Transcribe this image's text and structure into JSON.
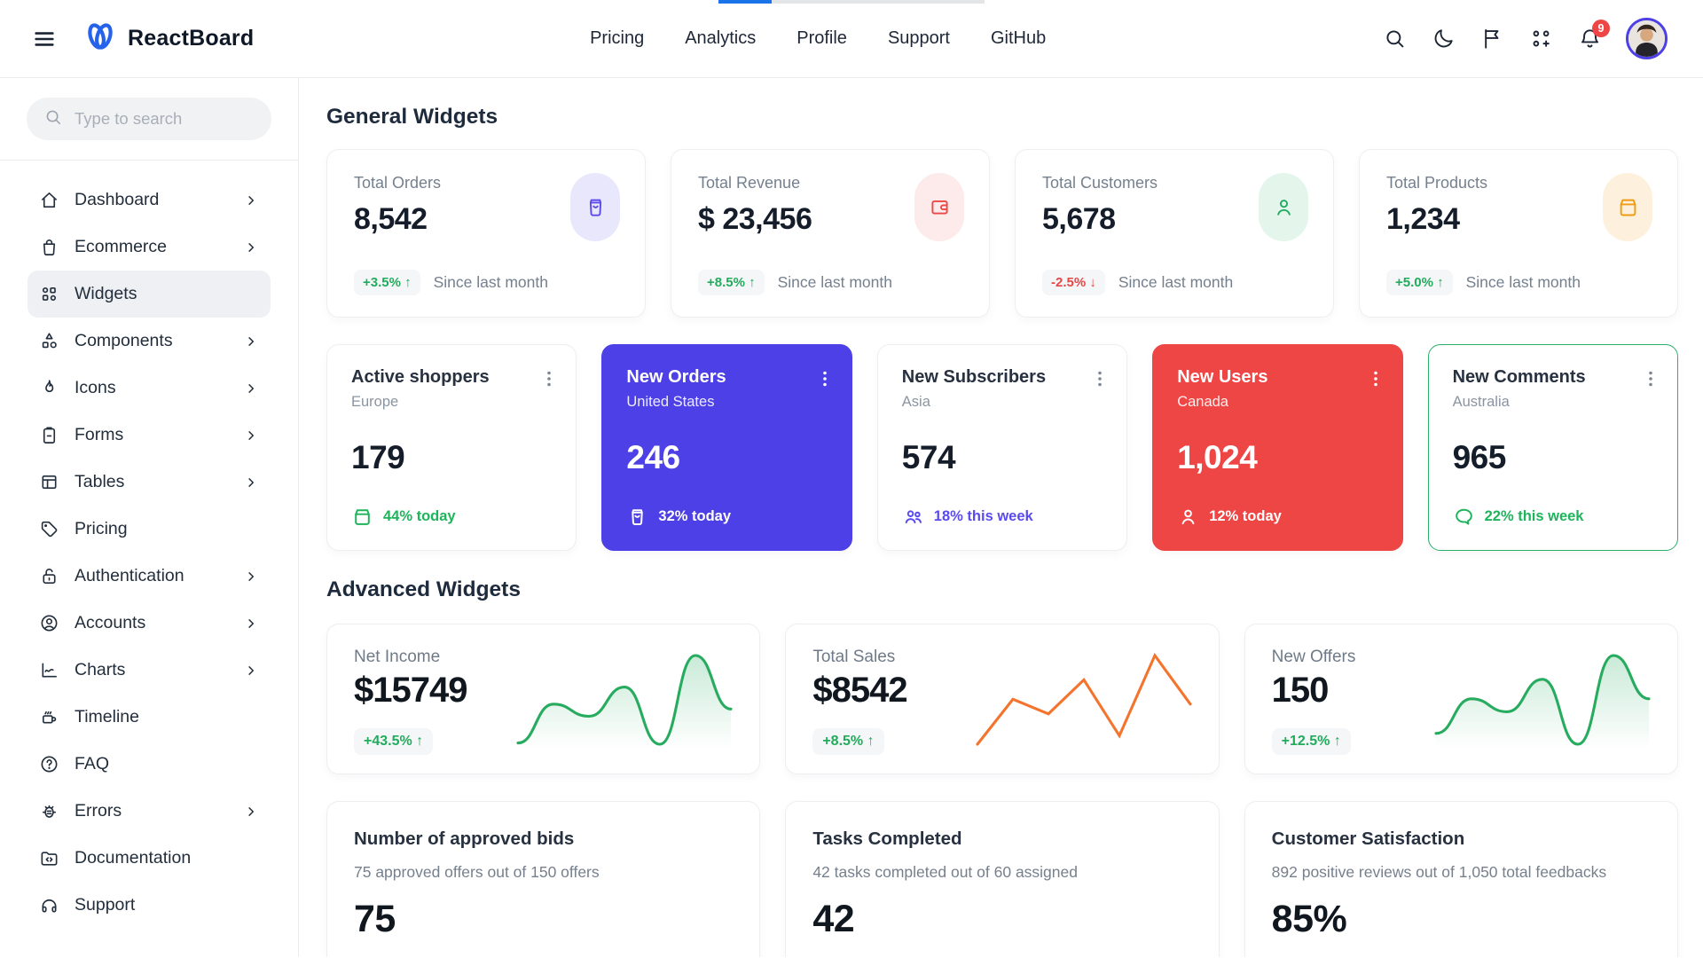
{
  "brand": {
    "name": "ReactBoard"
  },
  "topbar": {
    "nav_links": [
      "Pricing",
      "Analytics",
      "Profile",
      "Support",
      "GitHub"
    ],
    "notification_count": "9",
    "icons": [
      "search-icon",
      "moon-icon",
      "flag-icon",
      "apps-icon",
      "bell-icon",
      "user-avatar"
    ],
    "progress_percent": 20
  },
  "sidebar": {
    "search_placeholder": "Type to search",
    "items": [
      {
        "label": "Dashboard",
        "icon": "home-icon",
        "chevron": true,
        "active": false
      },
      {
        "label": "Ecommerce",
        "icon": "shopping-bag-icon",
        "chevron": true,
        "active": false
      },
      {
        "label": "Widgets",
        "icon": "widgets-icon",
        "chevron": false,
        "active": true
      },
      {
        "label": "Components",
        "icon": "shapes-icon",
        "chevron": true,
        "active": false
      },
      {
        "label": "Icons",
        "icon": "flame-icon",
        "chevron": true,
        "active": false
      },
      {
        "label": "Forms",
        "icon": "clipboard-icon",
        "chevron": true,
        "active": false
      },
      {
        "label": "Tables",
        "icon": "table-icon",
        "chevron": true,
        "active": false
      },
      {
        "label": "Pricing",
        "icon": "tag-icon",
        "chevron": false,
        "active": false
      },
      {
        "label": "Authentication",
        "icon": "lock-open-icon",
        "chevron": true,
        "active": false
      },
      {
        "label": "Accounts",
        "icon": "user-circle-icon",
        "chevron": true,
        "active": false
      },
      {
        "label": "Charts",
        "icon": "chart-line-icon",
        "chevron": true,
        "active": false
      },
      {
        "label": "Timeline",
        "icon": "coffee-icon",
        "chevron": false,
        "active": false
      },
      {
        "label": "FAQ",
        "icon": "help-circle-icon",
        "chevron": false,
        "active": false
      },
      {
        "label": "Errors",
        "icon": "bug-icon",
        "chevron": true,
        "active": false
      },
      {
        "label": "Documentation",
        "icon": "folder-code-icon",
        "chevron": false,
        "active": false
      },
      {
        "label": "Support",
        "icon": "headphones-icon",
        "chevron": false,
        "active": false
      }
    ]
  },
  "sections": {
    "general": "General Widgets",
    "advanced": "Advanced Widgets"
  },
  "stat_cards": [
    {
      "label": "Total Orders",
      "value": "8,542",
      "delta": "+3.5%",
      "arrow": "↑",
      "delta_color": "#21ac5c",
      "note": "Since last month",
      "icon": "order-bag-icon",
      "icon_color": "#5b4be8",
      "icon_bg": "#e9e7fb"
    },
    {
      "label": "Total Revenue",
      "value": "$ 23,456",
      "delta": "+8.5%",
      "arrow": "↑",
      "delta_color": "#21ac5c",
      "note": "Since last month",
      "icon": "wallet-icon",
      "icon_color": "#ec4747",
      "icon_bg": "#fdeaea"
    },
    {
      "label": "Total Customers",
      "value": "5,678",
      "delta": "-2.5%",
      "arrow": "↓",
      "delta_color": "#e64747",
      "note": "Since last month",
      "icon": "person-icon",
      "icon_color": "#22ab60",
      "icon_bg": "#e4f6ec"
    },
    {
      "label": "Total Products",
      "value": "1,234",
      "delta": "+5.0%",
      "arrow": "↑",
      "delta_color": "#21ac5c",
      "note": "Since last month",
      "icon": "package-icon",
      "icon_color": "#f09b11",
      "icon_bg": "#fdf1dd"
    }
  ],
  "mini_cards": [
    {
      "title": "Active shoppers",
      "region": "Europe",
      "value": "179",
      "stat": "44% today",
      "icon": "package-icon",
      "variant": "white",
      "accent": "#1db45c"
    },
    {
      "title": "New Orders",
      "region": "United States",
      "value": "246",
      "stat": "32% today",
      "icon": "order-bag-icon",
      "variant": "indigo",
      "accent": "#ffffff"
    },
    {
      "title": "New Subscribers",
      "region": "Asia",
      "value": "574",
      "stat": "18% this week",
      "icon": "users-icon",
      "variant": "white",
      "accent": "#5a4bf0"
    },
    {
      "title": "New Users",
      "region": "Canada",
      "value": "1,024",
      "stat": "12% today",
      "icon": "person-icon",
      "variant": "red",
      "accent": "#ffffff"
    },
    {
      "title": "New Comments",
      "region": "Australia",
      "value": "965",
      "stat": "22% this week",
      "icon": "chat-icon",
      "variant": "green-border",
      "accent": "#1db45c"
    }
  ],
  "advanced_cards": [
    {
      "title": "Net Income",
      "value": "$15749",
      "delta": "+43.5%",
      "arrow": "↑",
      "delta_color": "#21ac5c",
      "spark": "net_income"
    },
    {
      "title": "Total Sales",
      "value": "$8542",
      "delta": "+8.5%",
      "arrow": "↑",
      "delta_color": "#21ac5c",
      "spark": "total_sales"
    },
    {
      "title": "New Offers",
      "value": "150",
      "delta": "+12.5%",
      "arrow": "↑",
      "delta_color": "#21ac5c",
      "spark": "new_offers"
    }
  ],
  "progress_cards": [
    {
      "title": "Number of approved bids",
      "subtitle": "75 approved offers out of 150 offers",
      "value": "75"
    },
    {
      "title": "Tasks Completed",
      "subtitle": "42 tasks completed out of 60 assigned",
      "value": "42"
    },
    {
      "title": "Customer Satisfaction",
      "subtitle": "892 positive reviews out of 1,050 total feedbacks",
      "value": "85%"
    }
  ],
  "chart_data": [
    {
      "id": "net_income",
      "type": "line",
      "title": "Net Income sparkline",
      "smooth": true,
      "area": true,
      "color": "#27ab5f",
      "values": [
        14,
        46,
        36,
        60,
        13,
        86,
        42
      ]
    },
    {
      "id": "total_sales",
      "type": "line",
      "title": "Total Sales sparkline",
      "smooth": false,
      "area": false,
      "color": "#f4742e",
      "values": [
        15,
        52,
        40,
        68,
        22,
        88,
        48
      ]
    },
    {
      "id": "new_offers",
      "type": "line",
      "title": "New Offers sparkline",
      "smooth": true,
      "area": true,
      "color": "#27ab5f",
      "values": [
        18,
        50,
        38,
        68,
        8,
        90,
        50
      ]
    }
  ],
  "colors": {
    "accent_indigo": "#4c40e6",
    "accent_red": "#ee4545",
    "accent_green": "#1db45c",
    "accent_orange": "#f09b11",
    "progress_blue": "#1a73e8"
  }
}
